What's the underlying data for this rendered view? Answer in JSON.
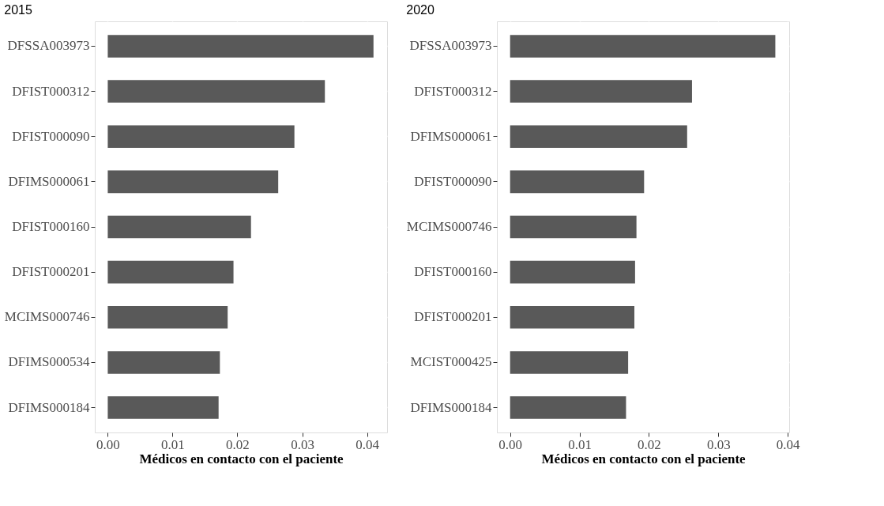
{
  "chart_data": [
    {
      "type": "bar",
      "orientation": "horizontal",
      "title": "2015",
      "xlabel": "Médicos en contacto con el paciente",
      "color": "#595959",
      "categories": [
        "DFSSA003973",
        "DFIST000312",
        "DFIST000090",
        "DFIMS000061",
        "DFIST000160",
        "DFIST000201",
        "MCIMS000746",
        "DFIMS000534",
        "DFIMS000184"
      ],
      "values": [
        0.041,
        0.0335,
        0.0288,
        0.0263,
        0.0221,
        0.0194,
        0.0185,
        0.0173,
        0.0171
      ],
      "xlim": [
        -0.002,
        0.0431
      ],
      "xticks": [
        {
          "value": 0,
          "label": "0.00"
        },
        {
          "value": 0.01,
          "label": "0.01"
        },
        {
          "value": 0.02,
          "label": "0.02"
        },
        {
          "value": 0.03,
          "label": "0.03"
        },
        {
          "value": 0.04,
          "label": "0.04"
        }
      ],
      "grid": true
    },
    {
      "type": "bar",
      "orientation": "horizontal",
      "title": "2020",
      "xlabel": "Médicos en contacto con el paciente",
      "color": "#595959",
      "categories": [
        "DFSSA003973",
        "DFIST000312",
        "DFIMS000061",
        "DFIST000090",
        "MCIMS000746",
        "DFIST000160",
        "DFIST000201",
        "MCIST000425",
        "DFIMS000184"
      ],
      "values": [
        0.0382,
        0.0262,
        0.0255,
        0.0193,
        0.0182,
        0.018,
        0.0179,
        0.017,
        0.0167
      ],
      "xlim": [
        -0.0019,
        0.0402
      ],
      "xticks": [
        {
          "value": 0,
          "label": "0.00"
        },
        {
          "value": 0.01,
          "label": "0.01"
        },
        {
          "value": 0.02,
          "label": "0.02"
        },
        {
          "value": 0.03,
          "label": "0.03"
        },
        {
          "value": 0.04,
          "label": "0.04"
        }
      ],
      "grid": true
    }
  ]
}
